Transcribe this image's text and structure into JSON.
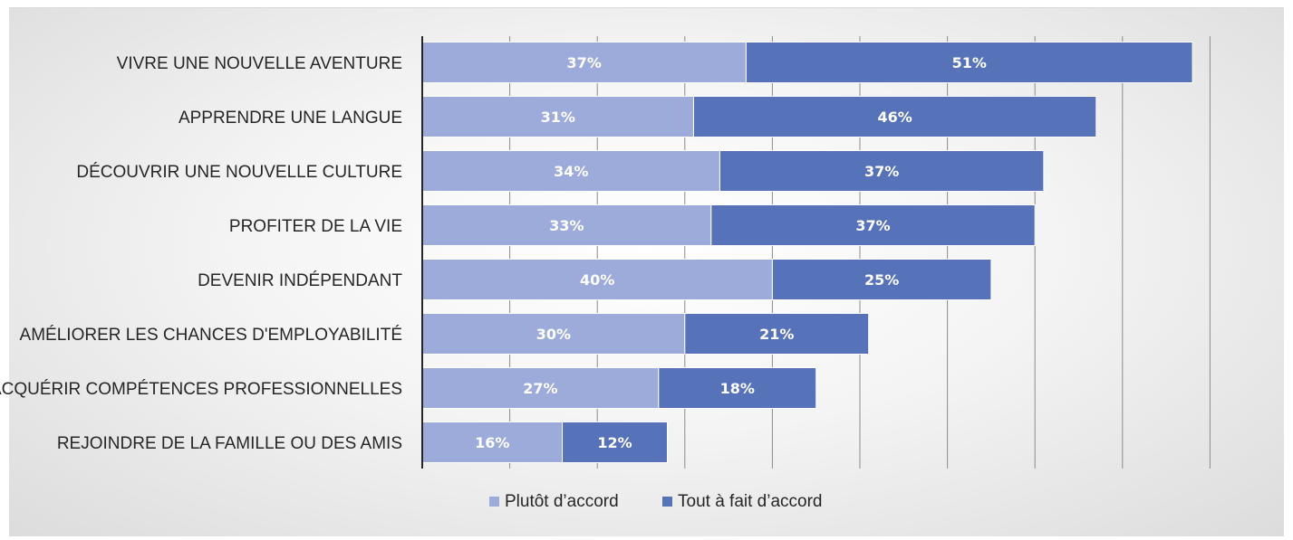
{
  "chart_data": {
    "type": "bar",
    "orientation": "horizontal",
    "stacked": true,
    "categories": [
      "VIVRE UNE NOUVELLE AVENTURE",
      "APPRENDRE UNE LANGUE",
      "DÉCOUVRIR UNE NOUVELLE CULTURE",
      "PROFITER DE LA VIE",
      "DEVENIR INDÉPENDANT",
      "AMÉLIORER LES CHANCES D'EMPLOYABILITÉ",
      "ACQUÉRIR COMPÉTENCES PROFESSIONNELLES",
      "REJOINDRE DE LA FAMILLE OU DES AMIS"
    ],
    "series": [
      {
        "name": "Plutôt d’accord",
        "values": [
          37,
          31,
          34,
          33,
          40,
          30,
          27,
          16
        ],
        "color": "#9dabdb"
      },
      {
        "name": "Tout à fait d’accord",
        "values": [
          51,
          46,
          37,
          37,
          25,
          21,
          18,
          12
        ],
        "color": "#5672b8"
      }
    ],
    "value_suffix": "%",
    "xlim": [
      0,
      90
    ],
    "gridlines": "vertical",
    "legend_position": "bottom"
  }
}
